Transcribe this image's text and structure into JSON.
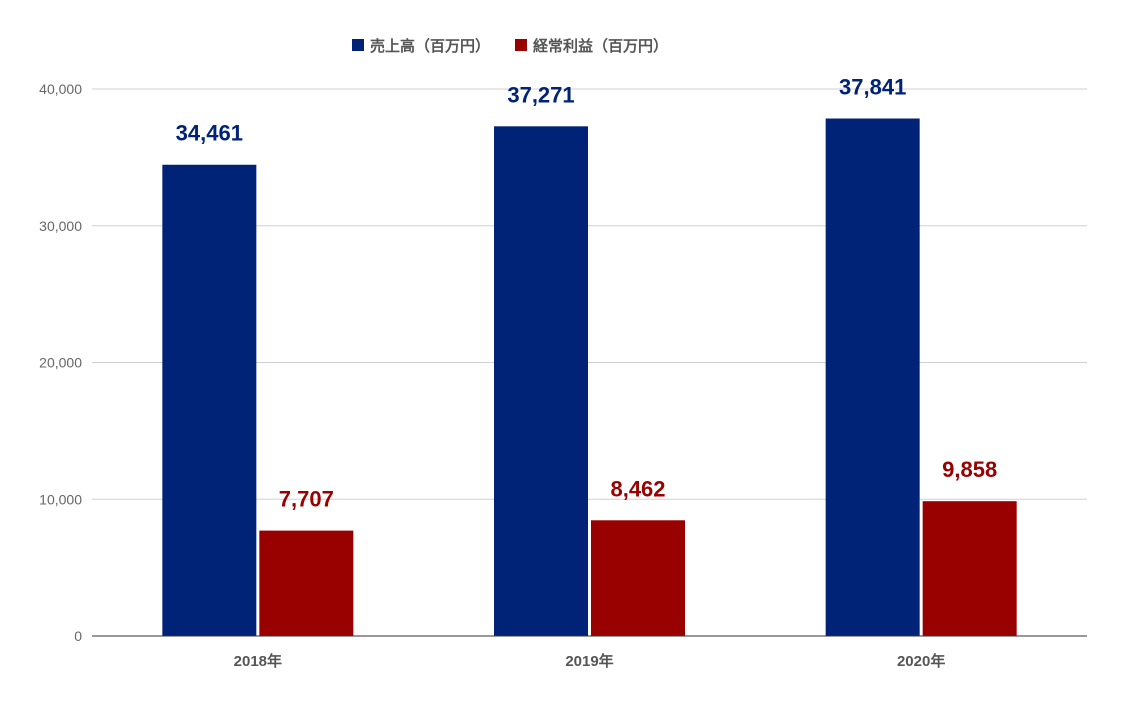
{
  "chart_data": {
    "type": "bar",
    "title": "",
    "xlabel": "",
    "ylabel": "",
    "categories": [
      "2018年",
      "2019年",
      "2020年"
    ],
    "series": [
      {
        "name": "売上高（百万円）",
        "color": "#002277",
        "values": [
          34461,
          37271,
          37841
        ],
        "labels": [
          "34,461",
          "37,271",
          "37,841"
        ]
      },
      {
        "name": "経常利益（百万円）",
        "color": "#990000",
        "values": [
          7707,
          8462,
          9858
        ],
        "labels": [
          "7,707",
          "8,462",
          "9,858"
        ]
      }
    ],
    "ylim": [
      0,
      40000
    ],
    "yticks": [
      0,
      10000,
      20000,
      30000,
      40000
    ],
    "ytick_labels": [
      "0",
      "10,000",
      "20,000",
      "30,000",
      "40,000"
    ],
    "grid": true,
    "legend_position": "top"
  }
}
